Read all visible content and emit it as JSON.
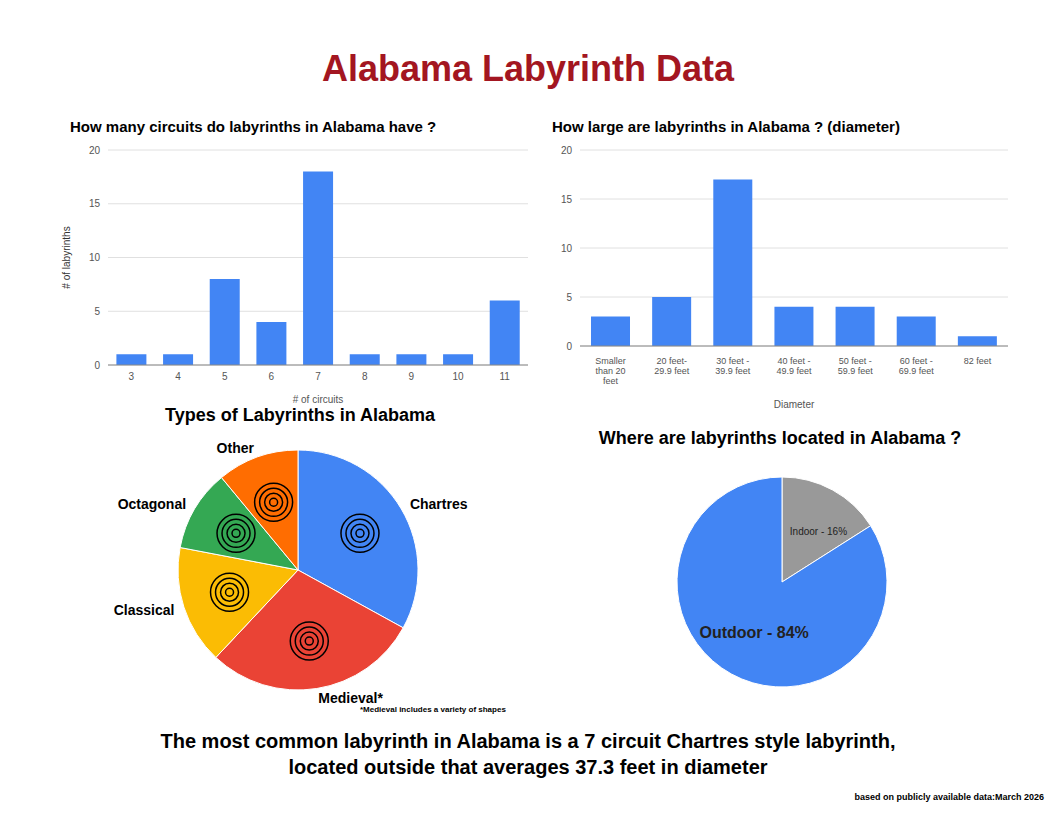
{
  "title": "Alabama Labyrinth Data",
  "chart_data": [
    {
      "type": "bar",
      "title": "How many circuits do labyrinths in Alabama have ?",
      "categories": [
        "3",
        "4",
        "5",
        "6",
        "7",
        "8",
        "9",
        "10",
        "11"
      ],
      "values": [
        1,
        1,
        8,
        4,
        18,
        1,
        1,
        1,
        6
      ],
      "color": "#4285f4",
      "xlabel": "# of circuits",
      "ylabel": "# of labyrinths",
      "ylim": [
        0,
        20
      ],
      "yticks": [
        0,
        5,
        10,
        15,
        20
      ],
      "grid": true
    },
    {
      "type": "bar",
      "title": "How large are labyrinths in Alabama ? (diameter)",
      "categories": [
        "Smaller than 20 feet",
        "20 feet- 29.9 feet",
        "30 feet - 39.9 feet",
        "40 feet - 49.9 feet",
        "50 feet - 59.9 feet",
        "60 feet - 69.9 feet",
        "82 feet"
      ],
      "values": [
        3,
        5,
        17,
        4,
        4,
        3,
        1
      ],
      "color": "#4285f4",
      "xlabel": "Diameter",
      "ylim": [
        0,
        20
      ],
      "yticks": [
        0,
        5,
        10,
        15,
        20
      ],
      "grid": true
    },
    {
      "type": "pie",
      "title": "Types of Labyrinths in Alabama",
      "categories": [
        "Chartres",
        "Medieval*",
        "Classical",
        "Octagonal",
        "Other"
      ],
      "values": [
        33,
        29,
        16,
        11,
        11
      ],
      "colors": [
        "#4285f4",
        "#ea4335",
        "#fbbc04",
        "#34a853",
        "#ff6d01"
      ],
      "footnote": "*Medieval includes a variety of shapes"
    },
    {
      "type": "pie",
      "title": "Where are labyrinths located in Alabama ?",
      "categories": [
        "Indoor",
        "Outdoor"
      ],
      "values": [
        16,
        84
      ],
      "value_labels": [
        "Indoor - 16%",
        "Outdoor - 84%"
      ],
      "colors": [
        "#999999",
        "#4285f4"
      ],
      "data_labels": true
    }
  ],
  "summary": [
    "The most common labyrinth in Alabama is a 7 circuit Chartres style labyrinth,",
    "located outside that averages 37.3 feet in diameter"
  ],
  "source": "based on publicly available data:March 2026"
}
